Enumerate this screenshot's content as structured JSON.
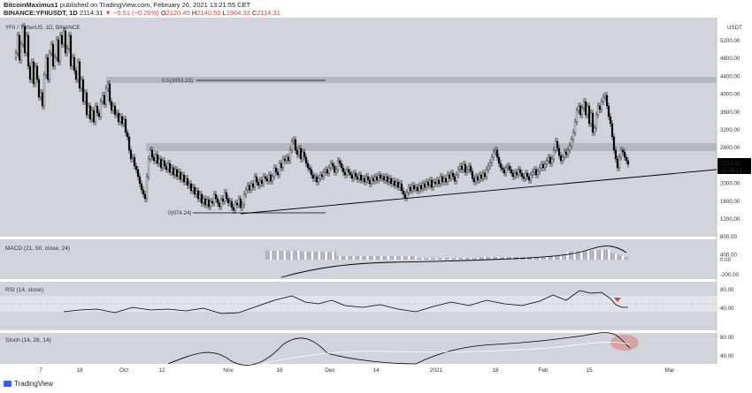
{
  "header": {
    "author": "BitcoinMaximus1",
    "published": "published on TradingView.com, February 26, 2021 13:21:55 CET",
    "symbol": "BINANCE:YFIIUSDT, 1D",
    "price": "2114.31",
    "change_arrow": "▼",
    "change": "−5.51 (−0.26%)",
    "ohlc": {
      "O": "2120.45",
      "H": "2140.50",
      "L": "1964.33",
      "C": "2114.31"
    }
  },
  "main_pane": {
    "watermark": "YFII / TetherUS, 1D, BINANCE",
    "fib_high_label": "0.5(3953.33)",
    "fib_low_label": "0(974.24)",
    "price_axis": [
      "5200.00",
      "4800.00",
      "4400.00",
      "4000.00",
      "3600.00",
      "3200.00",
      "2800.00",
      "2400.00",
      "2000.00",
      "1600.00",
      "1200.00",
      "800.00",
      "400.00"
    ],
    "currency": "USDT",
    "last_price_tag": "2114.31",
    "countdown_tag": "11:38:12"
  },
  "macd_pane": {
    "label": "MACD (21, 50, close, 24)",
    "axis": [
      "0.00",
      "-200.00"
    ]
  },
  "rsi_pane": {
    "label": "RSI (14, close)",
    "axis": [
      "80.00",
      "40.00"
    ]
  },
  "stoch_pane": {
    "label": "Stoch (14, 28, 14)",
    "axis": [
      "80.00",
      "40.00"
    ]
  },
  "x_axis": [
    "7",
    "18",
    "Oct",
    "12",
    "Nov",
    "16",
    "Dec",
    "14",
    "2021",
    "18",
    "Feb",
    "15",
    "Mar"
  ],
  "footer": {
    "brand": "TradingView"
  },
  "colors": {
    "bg": "#d1d4dc",
    "up": "#ffffff",
    "down": "#000000",
    "band": "#b0b3bb",
    "red_marker": "#e0443c",
    "line": "#000000"
  }
}
